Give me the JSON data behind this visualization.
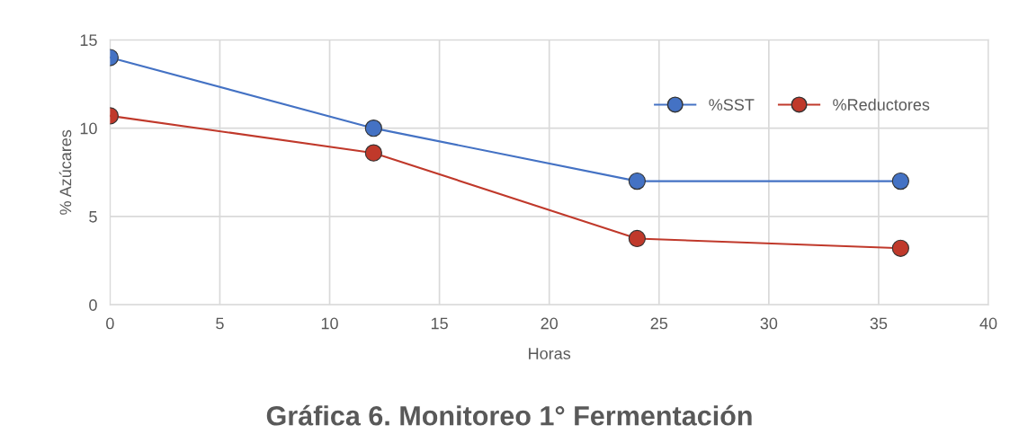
{
  "chart_data": {
    "type": "line",
    "title": "Gráfica 6. Monitoreo 1° Fermentación",
    "xlabel": "Horas",
    "ylabel": "% Azúcares",
    "x": [
      0,
      12,
      24,
      36
    ],
    "series": [
      {
        "name": "%SST",
        "color": "#4472c4",
        "values": [
          14,
          10,
          7,
          7
        ]
      },
      {
        "name": "%Reductores",
        "color": "#c0392b",
        "values": [
          10.7,
          8.6,
          3.75,
          3.2
        ]
      }
    ],
    "xlim": [
      0,
      40
    ],
    "xticks": [
      0,
      5,
      10,
      15,
      20,
      25,
      30,
      35,
      40
    ],
    "ylim": [
      0,
      15
    ],
    "yticks": [
      0,
      5,
      10,
      15
    ],
    "grid": true,
    "legend": "right",
    "marker": "circle",
    "line_style": "solid"
  }
}
